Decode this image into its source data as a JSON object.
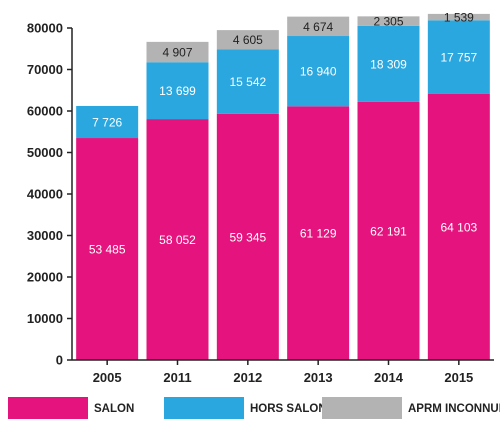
{
  "chart_data": {
    "type": "bar",
    "stacked": true,
    "categories": [
      "2005",
      "2011",
      "2012",
      "2013",
      "2014",
      "2015"
    ],
    "series": [
      {
        "name": "SALON",
        "color": "#e5137e",
        "values": [
          53485,
          58052,
          59345,
          61129,
          62191,
          64103
        ],
        "labels": [
          "53 485",
          "58 052",
          "59 345",
          "61 129",
          "62 191",
          "64 103"
        ]
      },
      {
        "name": "HORS SALON",
        "color": "#2aa7df",
        "values": [
          7726,
          13699,
          15542,
          16940,
          18309,
          17757
        ],
        "labels": [
          "7 726",
          "13 699",
          "15 542",
          "16 940",
          "18 309",
          "17 757"
        ]
      },
      {
        "name": "APRM INCONNUE",
        "color": "#b3b3b3",
        "values": [
          null,
          4907,
          4605,
          4674,
          2305,
          1539
        ],
        "labels": [
          "",
          "4 907",
          "4 605",
          "4 674",
          "2 305",
          "1 539"
        ]
      }
    ],
    "yticks": [
      "0",
      "10000",
      "20000",
      "30000",
      "40000",
      "50000",
      "60000",
      "70000",
      "80000"
    ],
    "ylim": [
      0,
      80000
    ],
    "grid": false,
    "legend_position": "bottom"
  }
}
